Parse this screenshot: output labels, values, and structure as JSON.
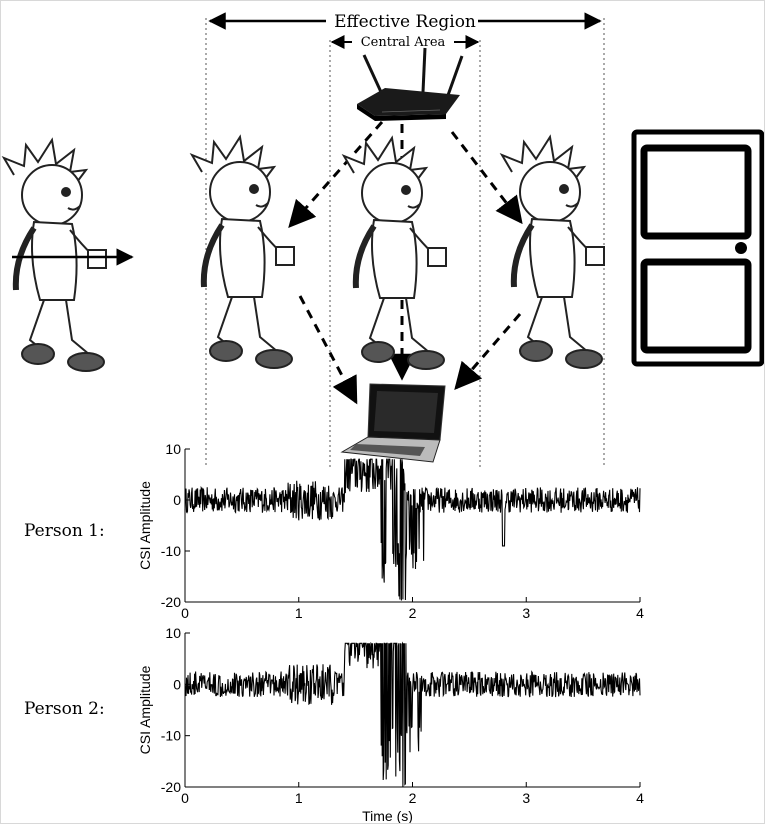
{
  "header": {
    "effective_region": "Effective Region",
    "central_area": "Central Area"
  },
  "persons": [
    {
      "label": "Person 1:"
    },
    {
      "label": "Person 2:"
    }
  ],
  "chart_data": [
    {
      "type": "line",
      "title": "",
      "ylabel": "CSI Amplitude",
      "xlabel": "",
      "xlim": [
        0,
        4
      ],
      "ylim": [
        -20,
        10
      ],
      "x_ticks": [
        "0",
        "1",
        "2",
        "3",
        "4"
      ],
      "y_ticks": [
        "10",
        "0",
        "-10",
        "-20"
      ],
      "series": [
        {
          "name": "Person 1",
          "description_values_sampled": [
            0.5,
            1.2,
            -1.0,
            2.0,
            0.3,
            4.5,
            5.5,
            -18.0,
            -19.5,
            1.0,
            -3.0,
            0.5,
            -1.0,
            0.2
          ]
        }
      ]
    },
    {
      "type": "line",
      "title": "",
      "ylabel": "CSI Amplitude",
      "xlabel": "Time (s)",
      "xlim": [
        0,
        4
      ],
      "ylim": [
        -20,
        10
      ],
      "x_ticks": [
        "0",
        "1",
        "2",
        "3",
        "4"
      ],
      "y_ticks": [
        "10",
        "0",
        "-10",
        "-20"
      ],
      "series": [
        {
          "name": "Person 2",
          "description_values_sampled": [
            0.2,
            -1.0,
            1.0,
            -2.0,
            2.5,
            7.0,
            6.5,
            -15.0,
            -20.0,
            -2.0,
            1.0,
            -0.5,
            0.5,
            0.8
          ]
        }
      ]
    }
  ]
}
